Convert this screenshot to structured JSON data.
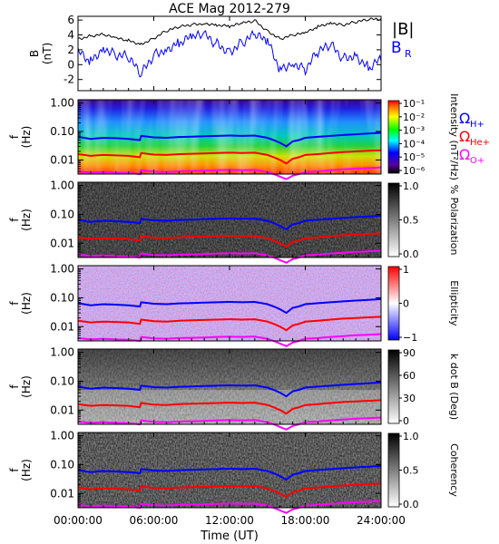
{
  "title": "ACE Mag 2012-279",
  "xlabel": "Time (UT)",
  "x_ticks": [
    "00:00:00",
    "06:00:00",
    "12:00:00",
    "18:00:00",
    "24:00:00"
  ],
  "legend_b": {
    "total": "|B|",
    "radial": "B",
    "radial_sub": "R"
  },
  "legend_cyclotron": [
    {
      "symbol": "Ω",
      "sub": "H+",
      "color": "#0000ff"
    },
    {
      "symbol": "Ω",
      "sub": "He+",
      "color": "#ff0000"
    },
    {
      "symbol": "Ω",
      "sub": "O+",
      "color": "#ff00ff"
    }
  ],
  "colors": {
    "B_total": "#000000",
    "B_radial": "#0000ff",
    "H": "#0000ff",
    "He": "#ff0000",
    "O": "#ff00ff"
  },
  "chart_data": [
    {
      "type": "line",
      "ylabel": "B",
      "yunit": "(nT)",
      "ylim": [
        -3.5,
        6.5
      ],
      "y_ticks": [
        "6",
        "4",
        "2",
        "0",
        "-2"
      ],
      "x_hours": [
        0,
        1,
        2,
        3,
        4,
        5,
        6,
        7,
        8,
        9,
        10,
        11,
        12,
        13,
        14,
        15,
        16,
        17,
        18,
        19,
        20,
        21,
        22,
        23,
        24
      ],
      "series": [
        {
          "name": "|B|",
          "values": [
            3.5,
            3.9,
            4.0,
            3.5,
            3.2,
            2.8,
            3.6,
            4.5,
            5.0,
            5.4,
            5.6,
            5.4,
            5.1,
            5.5,
            5.9,
            4.6,
            3.5,
            3.9,
            4.2,
            5.1,
            5.7,
            5.4,
            5.7,
            6.0,
            6.2
          ]
        },
        {
          "name": "B_R",
          "values": [
            1.5,
            0.5,
            2.5,
            1.5,
            0.8,
            -1.5,
            1.5,
            2.3,
            3.0,
            3.5,
            3.8,
            2.8,
            2.0,
            3.0,
            3.8,
            3.0,
            -0.5,
            0.5,
            -0.5,
            1.5,
            2.5,
            1.0,
            1.5,
            -0.5,
            0.5
          ]
        }
      ]
    },
    {
      "type": "heatmap",
      "ylabel": "f",
      "yunit": "(Hz)",
      "colorbar_label": "Intensity (nT²/Hz)",
      "colorbar_ticks": [
        "10⁻¹",
        "10⁻²",
        "10⁻³",
        "10⁻⁴",
        "10⁻⁵",
        "10⁻⁶"
      ]
    },
    {
      "type": "heatmap",
      "ylabel": "f",
      "yunit": "(Hz)",
      "colorbar_label": "% Polarization",
      "colorbar_ticks": [
        "1.0",
        "0.5",
        "0.0"
      ]
    },
    {
      "type": "heatmap",
      "ylabel": "f",
      "yunit": "(Hz)",
      "colorbar_label": "Ellipticity",
      "colorbar_ticks": [
        "1",
        "0",
        "−1"
      ]
    },
    {
      "type": "heatmap",
      "ylabel": "f",
      "yunit": "(Hz)",
      "colorbar_label": "k dot B (Deg)",
      "colorbar_ticks": [
        "90",
        "60",
        "30",
        "0"
      ]
    },
    {
      "type": "heatmap",
      "ylabel": "f",
      "yunit": "(Hz)",
      "colorbar_label": "Coherency",
      "colorbar_ticks": [
        "1.0",
        "0.5",
        "0.0"
      ]
    }
  ],
  "frequency_axis": {
    "scale": "log",
    "ylim": [
      0.0032,
      1.3
    ],
    "ticks": [
      "1.00",
      "0.10",
      "0.01"
    ]
  },
  "cyclotron_lines": {
    "x_hours": [
      0,
      1,
      2,
      3,
      4,
      4.9,
      5.0,
      6,
      7,
      8,
      9,
      10,
      11,
      12,
      13,
      14,
      15,
      15.5,
      16,
      16.5,
      17,
      17.5,
      18,
      19,
      20,
      21,
      22,
      23,
      24
    ],
    "H": [
      0.065,
      0.055,
      0.06,
      0.058,
      0.055,
      0.05,
      0.07,
      0.062,
      0.06,
      0.064,
      0.066,
      0.068,
      0.07,
      0.072,
      0.07,
      0.072,
      0.06,
      0.05,
      0.04,
      0.03,
      0.045,
      0.05,
      0.06,
      0.065,
      0.07,
      0.075,
      0.08,
      0.085,
      0.09
    ],
    "He": [
      0.016,
      0.014,
      0.015,
      0.0145,
      0.014,
      0.0125,
      0.0175,
      0.0155,
      0.015,
      0.016,
      0.0165,
      0.017,
      0.0175,
      0.018,
      0.0175,
      0.018,
      0.015,
      0.0125,
      0.01,
      0.0075,
      0.011,
      0.0125,
      0.015,
      0.016,
      0.0175,
      0.019,
      0.02,
      0.021,
      0.022
    ],
    "O": [
      0.004,
      0.0036,
      0.0038,
      0.0036,
      0.0035,
      0.0032,
      0.0044,
      0.0039,
      0.0038,
      0.004,
      0.0041,
      0.0042,
      0.0044,
      0.0045,
      0.0044,
      0.0045,
      0.0038,
      0.0032,
      0.0026,
      0.0021,
      0.0028,
      0.0032,
      0.0038,
      0.004,
      0.0044,
      0.0047,
      0.005,
      0.0052,
      0.0055
    ]
  }
}
